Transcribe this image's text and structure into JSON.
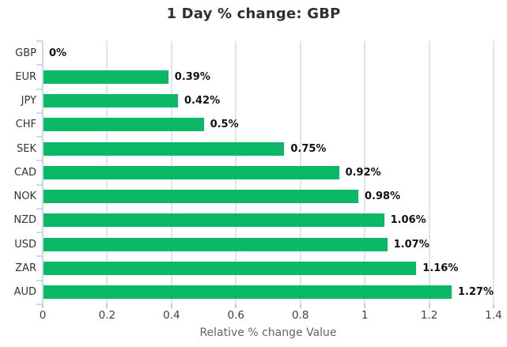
{
  "chart_data": {
    "type": "bar",
    "orientation": "horizontal",
    "title": "1 Day % change: GBP",
    "xlabel": "Relative % change Value",
    "categories": [
      "GBP",
      "EUR",
      "JPY",
      "CHF",
      "SEK",
      "CAD",
      "NOK",
      "NZD",
      "USD",
      "ZAR",
      "AUD"
    ],
    "values": [
      0,
      0.39,
      0.42,
      0.5,
      0.75,
      0.92,
      0.98,
      1.06,
      1.07,
      1.16,
      1.27
    ],
    "value_labels": [
      "0%",
      "0.39%",
      "0.42%",
      "0.5%",
      "0.75%",
      "0.92%",
      "0.98%",
      "1.06%",
      "1.07%",
      "1.16%",
      "1.27%"
    ],
    "x_ticks": [
      "0",
      "0.2",
      "0.4",
      "0.6",
      "0.8",
      "1",
      "1.2",
      "1.4"
    ],
    "xlim": [
      0,
      1.4
    ],
    "grid": "vertical-only",
    "legend": "none"
  },
  "colors": {
    "bar": "#0ab866",
    "grid": "#e4e4e4",
    "y_axis": "#c9d9e6",
    "y_tick": "#ccdbe7",
    "x_tick": "#c9c9c9",
    "title_text": "#2f2f2f",
    "category_label": "#333333",
    "value_label": "#111111",
    "x_tick_label": "#3f3f3f",
    "axis_title": "#5b6670"
  }
}
